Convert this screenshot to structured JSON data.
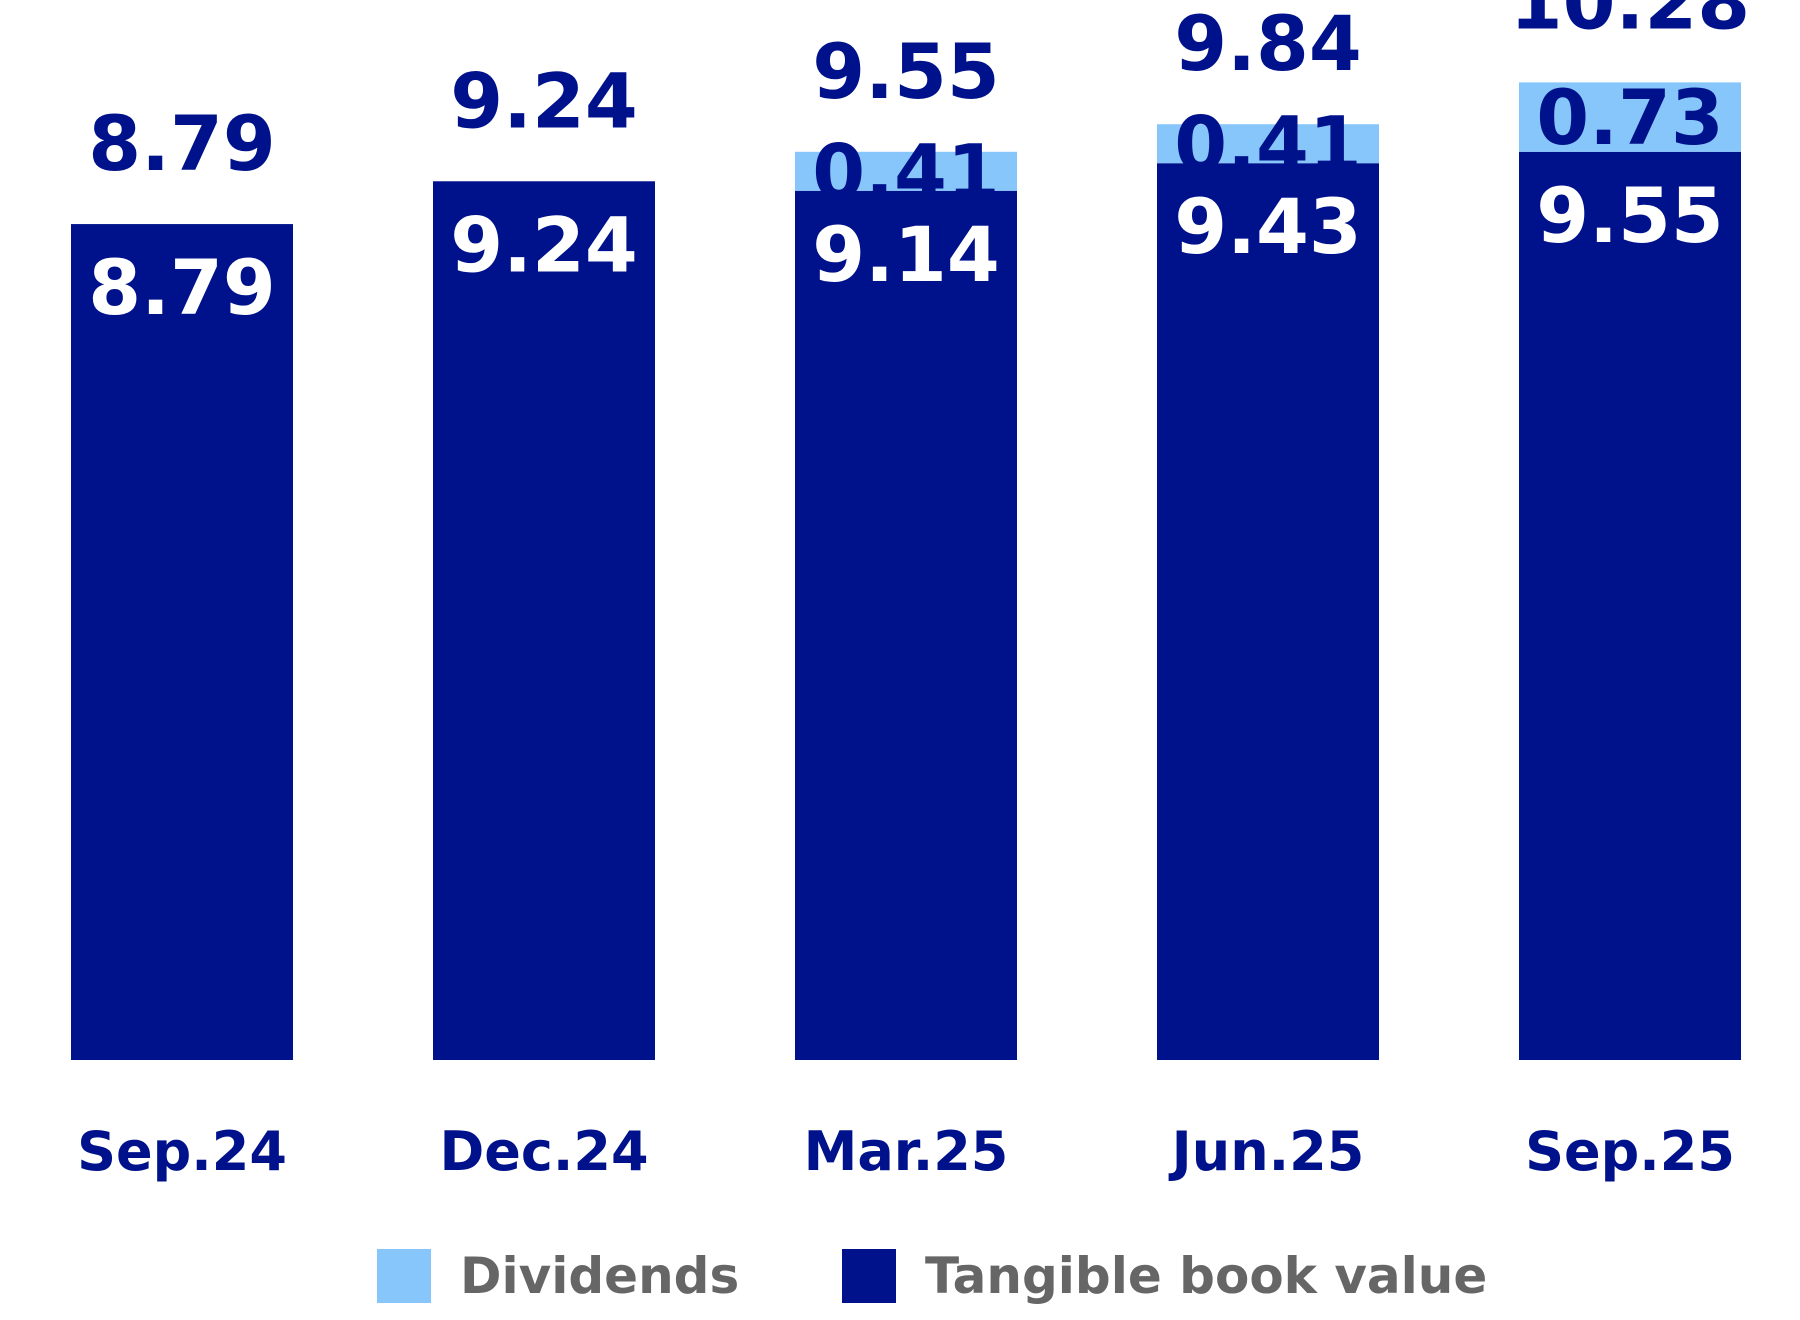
{
  "chart_data": {
    "type": "bar",
    "stacked": true,
    "categories": [
      "Sep.24",
      "Dec.24",
      "Mar.25",
      "Jun.25",
      "Sep.25"
    ],
    "series": [
      {
        "name": "Tangible book value",
        "color": "#00118c",
        "label_color": "#ffffff",
        "values": [
          8.79,
          9.24,
          9.14,
          9.43,
          9.55
        ],
        "labels": [
          "8.79",
          "9.24",
          "9.14",
          "9.43",
          "9.55"
        ]
      },
      {
        "name": "Dividends",
        "color": "#87c6fb",
        "label_color": "#00118c",
        "values": [
          0,
          0,
          0.41,
          0.41,
          0.73
        ],
        "labels": [
          "",
          "",
          "0.41",
          "0.41",
          "0.73"
        ]
      }
    ],
    "totals": [
      8.79,
      9.24,
      9.55,
      9.84,
      10.28
    ],
    "total_labels": [
      "8.79",
      "9.24",
      "9.55",
      "9.84",
      "10.28"
    ],
    "legend": [
      {
        "name": "Dividends",
        "color": "#87c6fb"
      },
      {
        "name": "Tangible book value",
        "color": "#00118c"
      }
    ],
    "legend_position": "bottom",
    "title": "",
    "xlabel": "",
    "ylabel": "",
    "text_color": "#00118c",
    "legend_text_color": "#666666"
  }
}
